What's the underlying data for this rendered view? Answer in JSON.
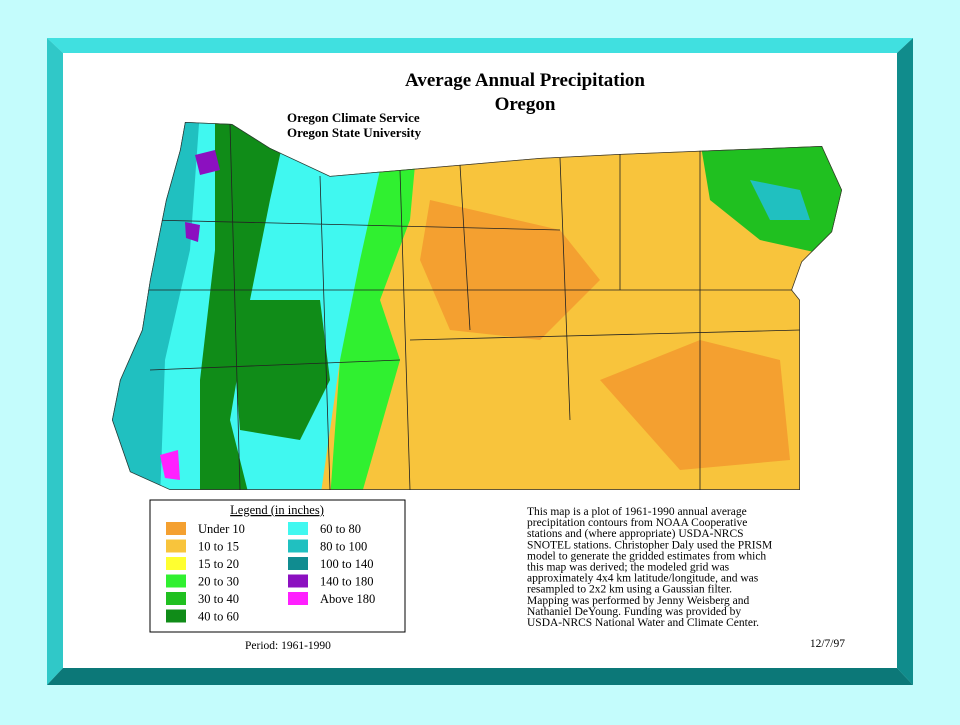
{
  "title": "Average Annual Precipitation",
  "subtitle": "Oregon",
  "credits": [
    "Oregon Climate Service",
    "Oregon State University"
  ],
  "legend": {
    "title": "Legend (in inches)",
    "items": [
      {
        "label": "Under 10",
        "color": "#f4a030"
      },
      {
        "label": "10 to 15",
        "color": "#f8c43c"
      },
      {
        "label": "15 to 20",
        "color": "#ffff30"
      },
      {
        "label": "20 to 30",
        "color": "#30f030"
      },
      {
        "label": "30 to 40",
        "color": "#20c020"
      },
      {
        "label": "40 to 60",
        "color": "#108c18"
      },
      {
        "label": "60 to 80",
        "color": "#40f8f0"
      },
      {
        "label": "80 to 100",
        "color": "#20c0c0"
      },
      {
        "label": "100 to 140",
        "color": "#108c90"
      },
      {
        "label": "140 to 180",
        "color": "#8c10c0"
      },
      {
        "label": "Above 180",
        "color": "#ff20ff"
      }
    ]
  },
  "description": [
    "This map is a plot of 1961-1990 annual average",
    "precipitation contours from NOAA Cooperative",
    "stations and (where appropriate) USDA-NRCS",
    "SNOTEL stations. Christopher Daly used the PRISM",
    "model to generate the gridded estimates from which",
    "this map was derived; the modeled grid was",
    "approximately 4x4 km latitude/longitude, and was",
    "resampled to 2x2 km using a Gaussian filter.",
    "Mapping was performed by Jenny Weisberg and",
    "Nathaniel DeYoung. Funding was provided by",
    "USDA-NRCS National Water and Climate Center."
  ],
  "period": "Period: 1961-1990",
  "date": "12/7/97"
}
